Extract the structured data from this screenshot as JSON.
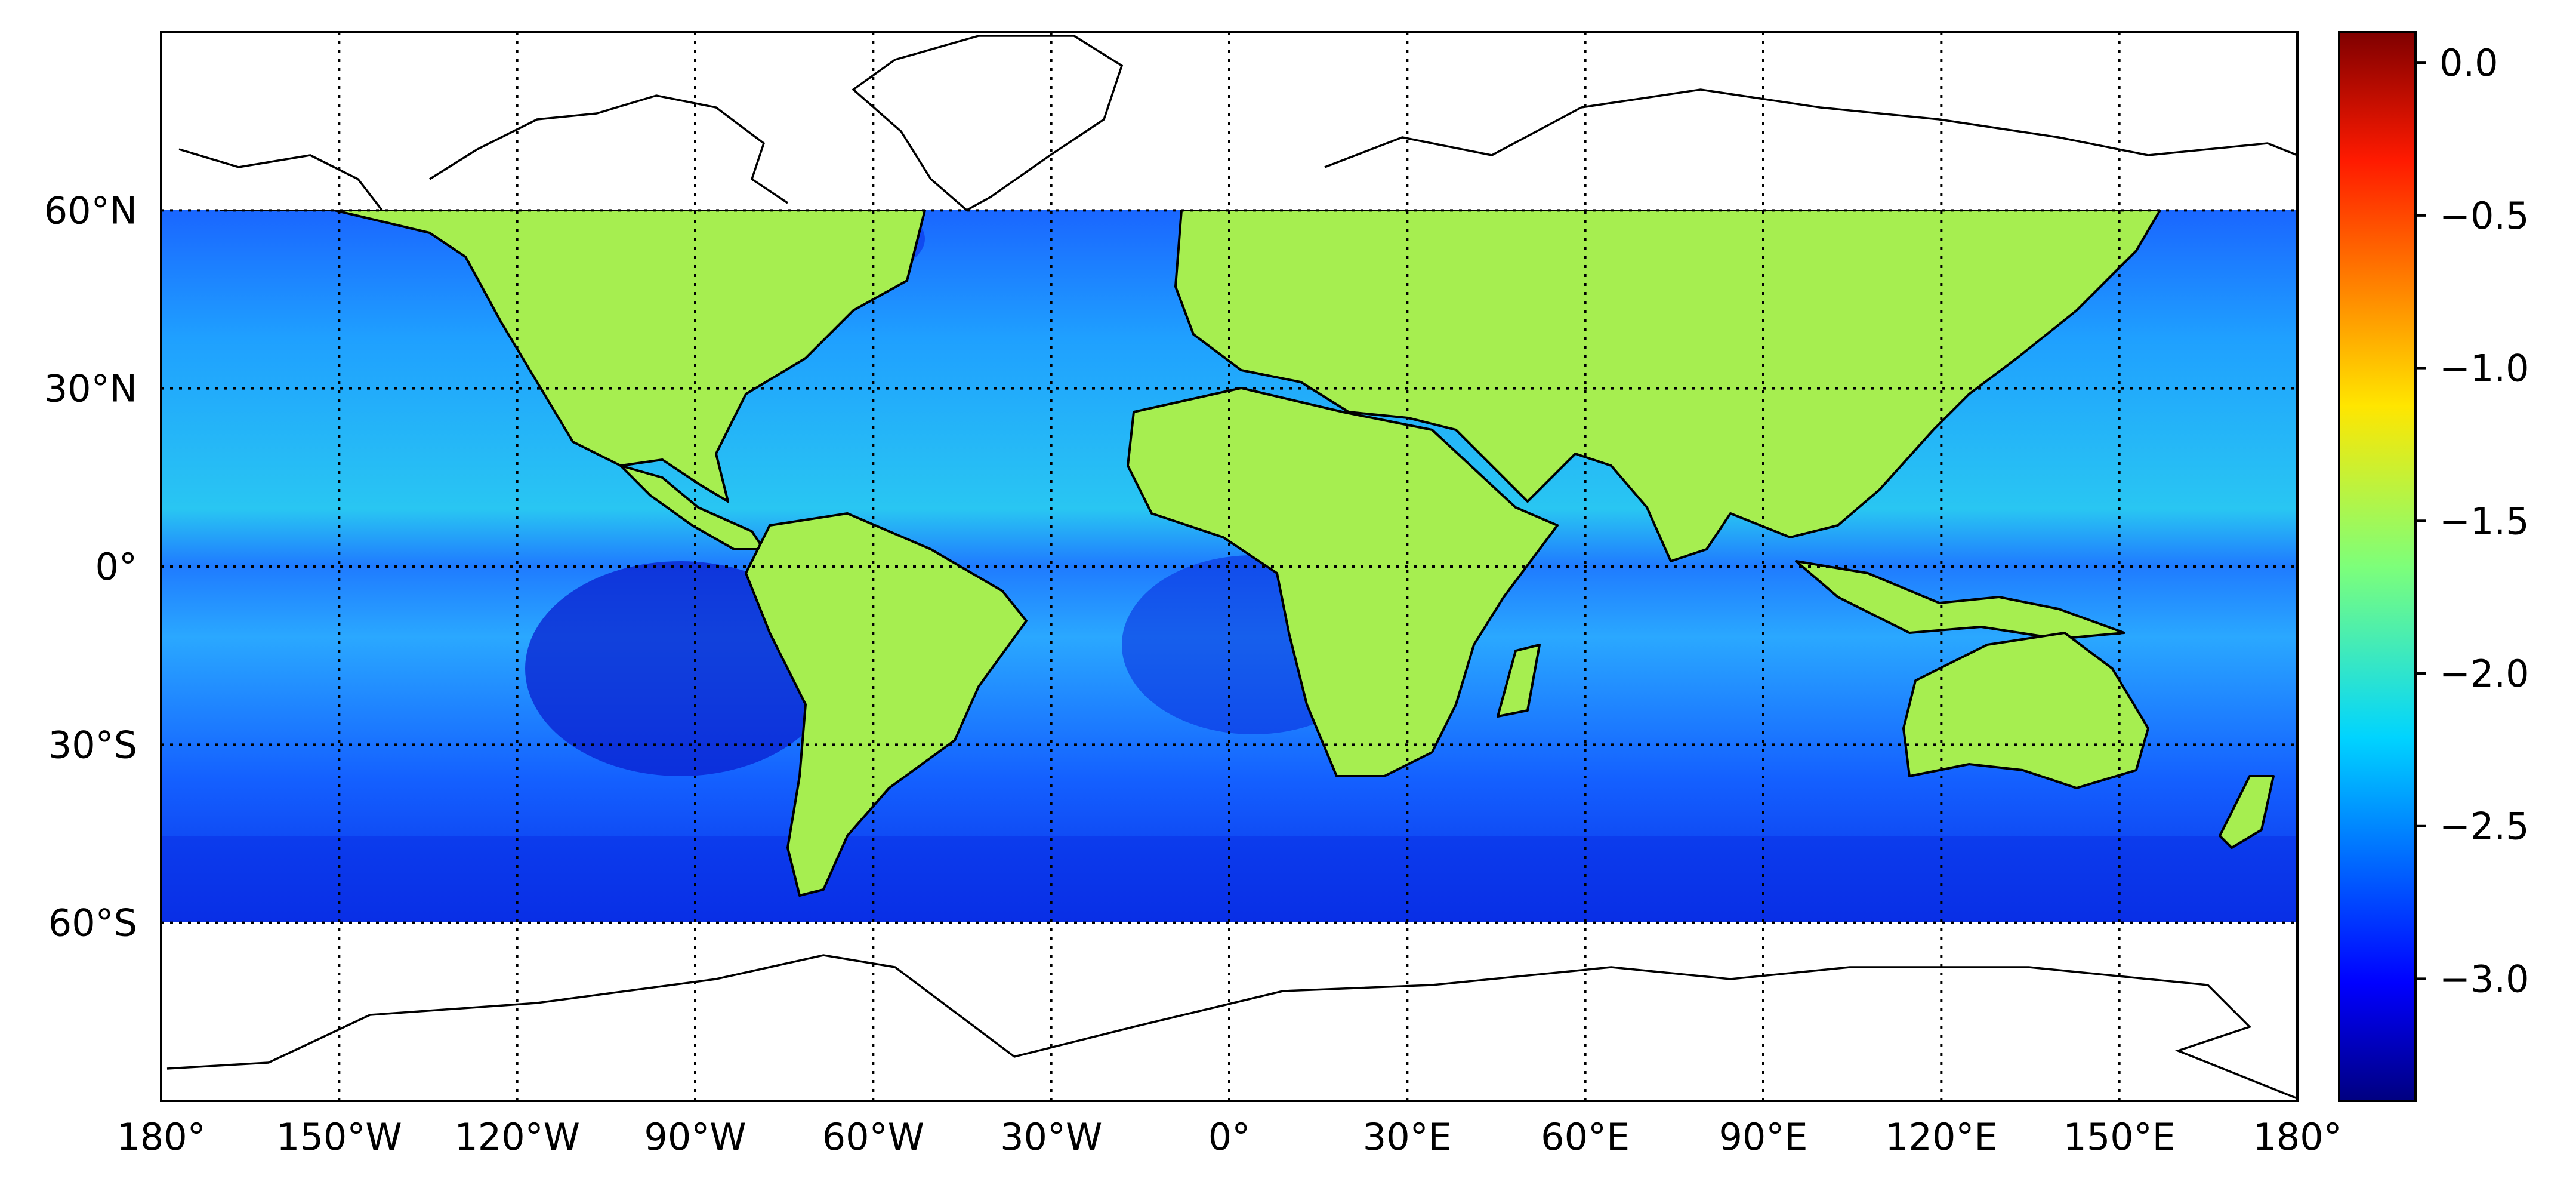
{
  "map": {
    "projection": "plate-carree",
    "data_lat_range": [
      -60,
      60
    ],
    "lon_range": [
      -180,
      180
    ],
    "lat_range": [
      -90,
      90
    ],
    "gridlines": "dotted",
    "x_ticks": [
      "180°",
      "150°W",
      "120°W",
      "90°W",
      "60°W",
      "30°W",
      "0°",
      "30°E",
      "60°E",
      "90°E",
      "120°E",
      "150°E",
      "180°"
    ],
    "y_ticks": [
      {
        "label": "60°N",
        "lat": 60
      },
      {
        "label": "30°N",
        "lat": 30
      },
      {
        "label": "0°",
        "lat": 0
      },
      {
        "label": "30°S",
        "lat": -30
      },
      {
        "label": "60°S",
        "lat": -60
      }
    ]
  },
  "colorbar": {
    "colormap": "jet",
    "range": [
      -3.4,
      0.1
    ],
    "ticks": [
      {
        "label": "0.0",
        "value": 0.0
      },
      {
        "label": "−0.5",
        "value": -0.5
      },
      {
        "label": "−1.0",
        "value": -1.0
      },
      {
        "label": "−1.5",
        "value": -1.5
      },
      {
        "label": "−2.0",
        "value": -2.0
      },
      {
        "label": "−2.5",
        "value": -2.5
      },
      {
        "label": "−3.0",
        "value": -3.0
      }
    ]
  },
  "colors": {
    "ocean_low": "#0d3ff0",
    "ocean_mid": "#1f8fff",
    "land_high": "#c8f040",
    "frame": "#000000",
    "polar_blank": "#ffffff"
  }
}
